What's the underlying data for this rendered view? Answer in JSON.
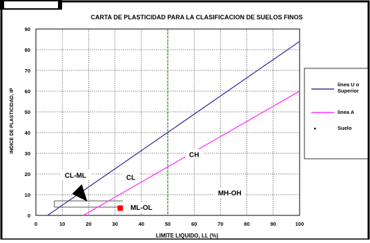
{
  "chart_data": {
    "type": "line",
    "title": "CARTA DE PLASTICIDAD PARA LA CLASIFICACION DE SUELOS FINOS",
    "xlabel": "LIMITE LIQUIDO, LL (%)",
    "ylabel": "INDICE DE PLASTICIDAD, IP",
    "xlim": [
      0,
      100
    ],
    "ylim": [
      0,
      90
    ],
    "x_ticks": [
      "0",
      "10",
      "20",
      "30",
      "40",
      "50",
      "60",
      "70",
      "80",
      "90",
      "100"
    ],
    "y_ticks": [
      "0",
      "10",
      "20",
      "30",
      "40",
      "50",
      "60",
      "70",
      "80",
      "90"
    ],
    "grid": true,
    "legend_position": "right",
    "series": [
      {
        "name": "linea U o Superior",
        "color": "#33339a",
        "points": [
          [
            4.4,
            0
          ],
          [
            100,
            84
          ]
        ]
      },
      {
        "name": "linea A",
        "color": "#ff33ff",
        "points": [
          [
            18,
            0
          ],
          [
            100,
            60
          ]
        ]
      },
      {
        "name": "Suelo",
        "color": "#ff0000",
        "points": [
          [
            32,
            3.5
          ]
        ]
      }
    ],
    "reference_lines": [
      {
        "x": 50,
        "color": "#009900",
        "style": "dashed"
      }
    ],
    "regions": [
      {
        "label": "CL-ML",
        "x": 15,
        "y": 19.5
      },
      {
        "label": "CL",
        "x": 36,
        "y": 18.5
      },
      {
        "label": "CH",
        "x": 60,
        "y": 29.5
      },
      {
        "label": "MH-OH",
        "x": 73.5,
        "y": 11
      },
      {
        "label": "ML-OL",
        "x": 40,
        "y": 4
      }
    ],
    "cl_ml_band": {
      "x_from": 7,
      "x_to": 33,
      "y_bottom": 4,
      "y_top": 7
    }
  },
  "colors": {
    "plot_bg": "#ffffff",
    "grid": "#000000",
    "arrow": "#000000"
  }
}
